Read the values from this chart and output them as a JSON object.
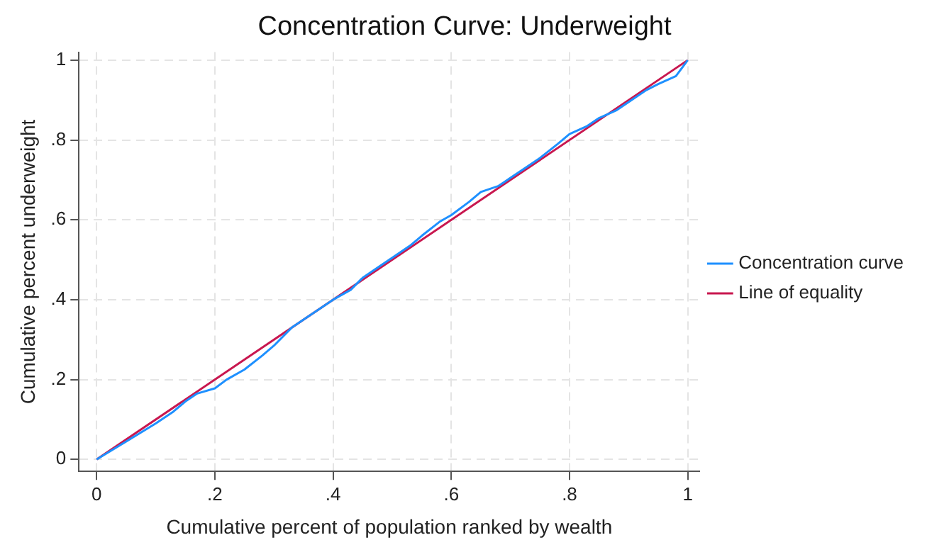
{
  "chart_data": {
    "type": "line",
    "title": "Concentration Curve: Underweight",
    "xlabel": "Cumulative percent of population ranked by wealth",
    "ylabel": "Cumulative percent underweight",
    "series": [
      {
        "name": "Concentration curve",
        "color": "#1e90ff",
        "x": [
          0,
          0.05,
          0.1,
          0.13,
          0.15,
          0.17,
          0.2,
          0.22,
          0.25,
          0.28,
          0.3,
          0.33,
          0.35,
          0.38,
          0.4,
          0.43,
          0.45,
          0.48,
          0.5,
          0.53,
          0.55,
          0.58,
          0.6,
          0.63,
          0.65,
          0.68,
          0.7,
          0.73,
          0.75,
          0.78,
          0.8,
          0.83,
          0.85,
          0.88,
          0.9,
          0.93,
          0.95,
          0.98,
          1
        ],
        "values": [
          0,
          0.045,
          0.09,
          0.12,
          0.145,
          0.165,
          0.178,
          0.2,
          0.225,
          0.26,
          0.285,
          0.33,
          0.35,
          0.38,
          0.4,
          0.425,
          0.455,
          0.485,
          0.505,
          0.535,
          0.56,
          0.595,
          0.612,
          0.645,
          0.67,
          0.685,
          0.705,
          0.735,
          0.755,
          0.79,
          0.815,
          0.835,
          0.855,
          0.875,
          0.895,
          0.925,
          0.94,
          0.96,
          1
        ]
      },
      {
        "name": "Line of equality",
        "color": "#c8174f",
        "x": [
          0,
          1
        ],
        "values": [
          0,
          1
        ]
      }
    ],
    "xlim": [
      -0.03,
      1.02
    ],
    "ylim": [
      -0.03,
      1.02
    ],
    "xticks": [
      0,
      {
        "value": 0.2,
        "label": ".2"
      },
      {
        "value": 0.4,
        "label": ".4"
      },
      {
        "value": 0.6,
        "label": ".6"
      },
      {
        "value": 0.8,
        "label": ".8"
      },
      1
    ],
    "yticks": [
      0,
      {
        "value": 0.2,
        "label": ".2"
      },
      {
        "value": 0.4,
        "label": ".4"
      },
      {
        "value": 0.6,
        "label": ".6"
      },
      {
        "value": 0.8,
        "label": ".8"
      },
      1
    ],
    "grid": true,
    "legend": "right",
    "marker": "none",
    "line_style": "solid"
  }
}
